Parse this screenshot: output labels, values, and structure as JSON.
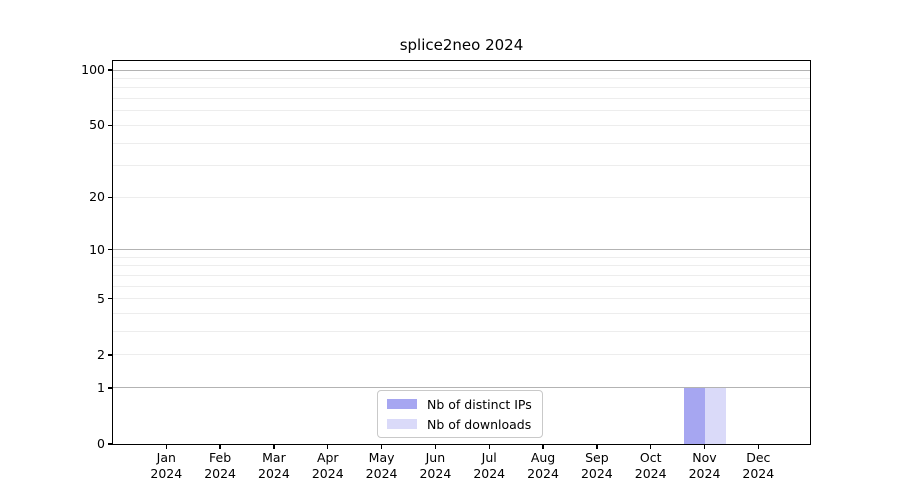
{
  "chart_data": {
    "type": "bar",
    "title": "splice2neo 2024",
    "categories": [
      "Jan",
      "Feb",
      "Mar",
      "Apr",
      "May",
      "Jun",
      "Jul",
      "Aug",
      "Sep",
      "Oct",
      "Nov",
      "Dec"
    ],
    "x_year_label": "2024",
    "series": [
      {
        "name": "Nb of distinct IPs",
        "color": "#a6a6f1",
        "values": [
          0,
          0,
          0,
          0,
          0,
          0,
          0,
          0,
          0,
          0,
          1,
          0
        ]
      },
      {
        "name": "Nb of downloads",
        "color": "#dadaf9",
        "values": [
          0,
          0,
          0,
          0,
          0,
          0,
          0,
          0,
          0,
          0,
          1,
          0
        ]
      }
    ],
    "y_axis": {
      "scale": "log1p",
      "ticks": [
        0,
        1,
        2,
        5,
        10,
        20,
        50,
        100
      ],
      "max": 112
    },
    "gridlines": {
      "decade_values": [
        1,
        10,
        100
      ],
      "minor_values": [
        2,
        3,
        4,
        5,
        6,
        7,
        8,
        9,
        20,
        30,
        40,
        50,
        60,
        70,
        80,
        90
      ]
    },
    "colors": {
      "decade_grid": "#b3b3b3",
      "minor_grid": "#ededed",
      "spine": "#000000",
      "legend_border": "#c9c9c9",
      "background": "#ffffff"
    },
    "legend_position": "lower center",
    "grid": true
  }
}
